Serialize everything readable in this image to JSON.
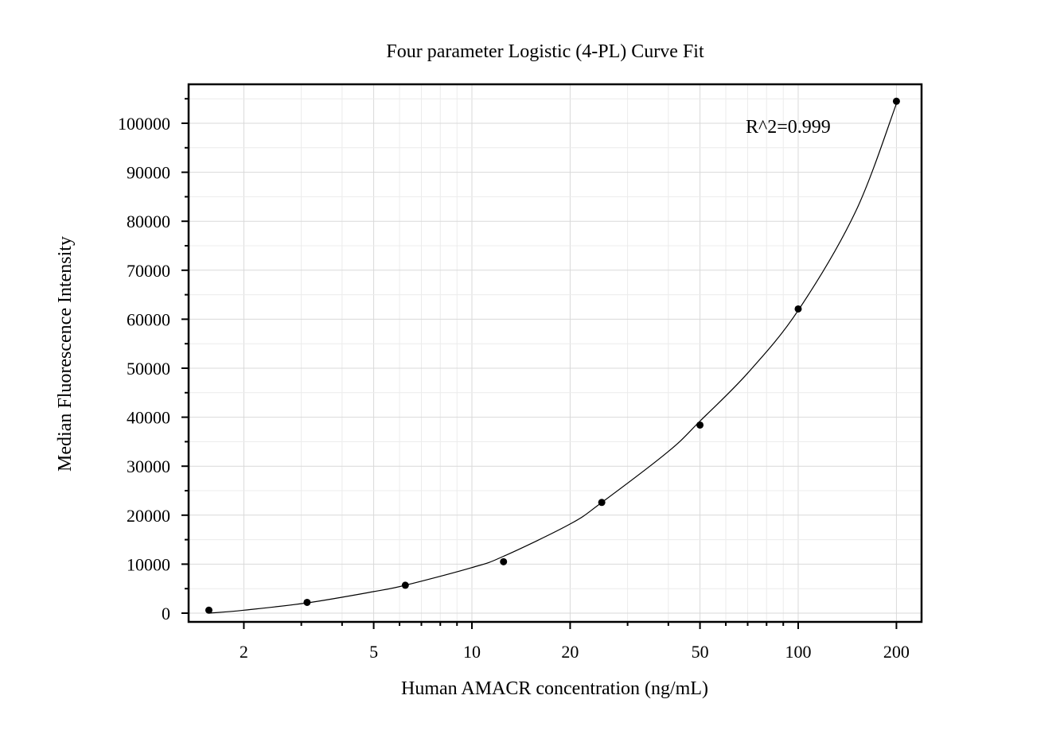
{
  "chart_data": {
    "type": "scatter",
    "title": "Four parameter Logistic (4-PL) Curve Fit",
    "xlabel": "Human AMACR concentration (ng/mL)",
    "ylabel": "Median Fluorescence Intensity",
    "x_scale": "log",
    "xlim": [
      1.5,
      230
    ],
    "ylim": [
      -2000,
      108000
    ],
    "x_ticks": [
      2,
      5,
      10,
      20,
      50,
      100,
      200
    ],
    "x_tick_labels": [
      "2",
      "5",
      "10",
      "20",
      "50",
      "100",
      "200"
    ],
    "y_ticks": [
      0,
      10000,
      20000,
      30000,
      40000,
      50000,
      60000,
      70000,
      80000,
      90000,
      100000
    ],
    "y_tick_labels": [
      "0",
      "10000",
      "20000",
      "30000",
      "40000",
      "50000",
      "60000",
      "70000",
      "80000",
      "90000",
      "100000"
    ],
    "grid": true,
    "series": [
      {
        "type": "scatter",
        "x": [
          1.5625,
          3.125,
          6.25,
          12.5,
          25,
          50,
          100,
          200
        ],
        "y": [
          600,
          2200,
          5700,
          10500,
          22600,
          38400,
          62100,
          104500
        ],
        "color": "#000000"
      },
      {
        "type": "line",
        "x": [
          1.5625,
          2,
          3.125,
          5,
          6.25,
          10,
          12.5,
          20,
          25,
          40,
          50,
          70,
          100,
          150,
          200
        ],
        "y": [
          0,
          600,
          2100,
          4400,
          5700,
          9300,
          11600,
          18200,
          22600,
          33000,
          39200,
          49000,
          61800,
          82000,
          104000
        ],
        "color": "#000000"
      }
    ],
    "annotations": [
      {
        "text": "R^2=0.999"
      }
    ]
  }
}
